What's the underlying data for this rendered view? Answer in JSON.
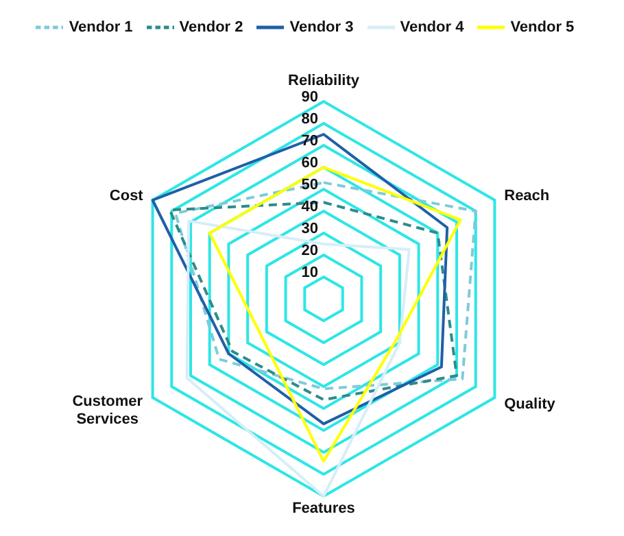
{
  "chart_data": {
    "type": "radar",
    "categories": [
      "Reliability",
      "Reach",
      "Quality",
      "Features",
      "Customer Services",
      "Cost"
    ],
    "ylim": [
      0,
      90
    ],
    "yticks": [
      10,
      20,
      30,
      40,
      50,
      60,
      70,
      80,
      90
    ],
    "grid": true,
    "legend": "top",
    "marker": "none",
    "series": [
      {
        "name": "Vendor 1",
        "color": "#7ecbd9",
        "line_style": "dashed",
        "values": [
          53,
          80,
          73,
          41,
          55,
          78
        ]
      },
      {
        "name": "Vendor 2",
        "color": "#2e8b8b",
        "line_style": "dashed",
        "values": [
          44,
          60,
          70,
          46,
          48,
          81
        ]
      },
      {
        "name": "Vendor 3",
        "color": "#1f5fa8",
        "line_style": "solid",
        "values": [
          75,
          65,
          62,
          57,
          50,
          90
        ]
      },
      {
        "name": "Vendor 4",
        "color": "#d6eef8",
        "line_style": "solid",
        "values": [
          25,
          45,
          40,
          90,
          72,
          71
        ]
      },
      {
        "name": "Vendor 5",
        "color": "#ffff00",
        "line_style": "solid",
        "values": [
          60,
          72,
          38,
          74,
          33,
          60
        ]
      }
    ]
  }
}
